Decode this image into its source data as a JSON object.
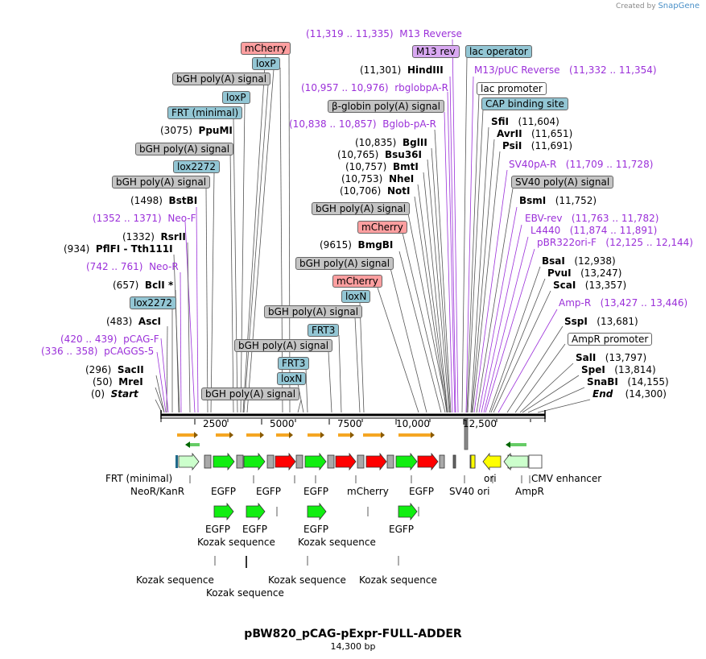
{
  "credit": {
    "prefix": "Created by",
    "brand": "SnapGene"
  },
  "title": "pBW820_pCAG-pExpr-FULL-ADDER",
  "subtitle": "14,300 bp",
  "ruler_ticks": [
    "2500",
    "5000",
    "7500",
    "10,000",
    "12,500"
  ],
  "left_sites": [
    {
      "pos": "(11,301)",
      "name": "HindIII"
    },
    {
      "pos": "(3075)",
      "name": "PpuMI"
    },
    {
      "pos": "(10,835)",
      "name": "BglII"
    },
    {
      "pos": "(10,765)",
      "name": "Bsu36I"
    },
    {
      "pos": "(10,757)",
      "name": "BmtI"
    },
    {
      "pos": "(10,753)",
      "name": "NheI"
    },
    {
      "pos": "(10,706)",
      "name": "NotI"
    },
    {
      "pos": "(1498)",
      "name": "BstBI"
    },
    {
      "pos": "(1332)",
      "name": "RsrII"
    },
    {
      "pos": "(934)",
      "name": "PflFI - Tth111I"
    },
    {
      "pos": "(9615)",
      "name": "BmgBI"
    },
    {
      "pos": "(657)",
      "name": "BclI *"
    },
    {
      "pos": "(483)",
      "name": "AscI"
    },
    {
      "pos": "(296)",
      "name": "SacII"
    },
    {
      "pos": "(50)",
      "name": "MreI"
    },
    {
      "pos": "(0)",
      "name": "Start"
    }
  ],
  "right_sites": [
    {
      "name": "SfiI",
      "pos": "(11,604)"
    },
    {
      "name": "AvrII",
      "pos": "(11,651)"
    },
    {
      "name": "PsiI",
      "pos": "(11,691)"
    },
    {
      "name": "BsmI",
      "pos": "(11,752)"
    },
    {
      "name": "BsaI",
      "pos": "(12,938)"
    },
    {
      "name": "PvuI",
      "pos": "(13,247)"
    },
    {
      "name": "ScaI",
      "pos": "(13,357)"
    },
    {
      "name": "SspI",
      "pos": "(13,681)"
    },
    {
      "name": "SalI",
      "pos": "(13,797)"
    },
    {
      "name": "SpeI",
      "pos": "(13,814)"
    },
    {
      "name": "SnaBI",
      "pos": "(14,155)"
    },
    {
      "name": "End",
      "pos": "(14,300)"
    }
  ],
  "primers": [
    {
      "range": "(11,319 .. 11,335)",
      "name": "M13 Reverse"
    },
    {
      "range": "(10,957 .. 10,976)",
      "name": "rbglobpA-R"
    },
    {
      "range": "(10,838 .. 10,857)",
      "name": "Bglob-pA-R"
    },
    {
      "range": "(1352 .. 1371)",
      "name": "Neo-F"
    },
    {
      "range": "(742 .. 761)",
      "name": "Neo-R"
    },
    {
      "range": "(420 .. 439)",
      "name": "pCAG-F"
    },
    {
      "range": "(336 .. 358)",
      "name": "pCAGGS-5"
    },
    {
      "range": "(11,332 .. 11,354)",
      "name": "M13/pUC Reverse"
    },
    {
      "range": "(11,709 .. 11,728)",
      "name": "SV40pA-R"
    },
    {
      "range": "(11,763 .. 11,782)",
      "name": "EBV-rev"
    },
    {
      "range": "(11,874 .. 11,891)",
      "name": "L4440"
    },
    {
      "range": "(12,125 .. 12,144)",
      "name": "pBR322ori-F"
    },
    {
      "range": "(13,427 .. 13,446)",
      "name": "Amp-R"
    }
  ],
  "boxed_features": [
    "mCherry",
    "loxP",
    "bGH poly(A) signal",
    "loxP",
    "FRT (minimal)",
    "bGH poly(A) signal",
    "lox2272",
    "bGH poly(A) signal",
    "lox2272",
    "M13 rev",
    "β-globin poly(A) signal",
    "bGH poly(A) signal",
    "mCherry",
    "bGH poly(A) signal",
    "mCherry",
    "loxN",
    "bGH poly(A) signal",
    "FRT3",
    "bGH poly(A) signal",
    "FRT3",
    "loxN",
    "bGH poly(A) signal",
    "lac operator",
    "lac promoter",
    "CAP binding site",
    "SV40 poly(A) signal",
    "AmpR promoter"
  ],
  "feature_labels": [
    "FRT (minimal)",
    "NeoR/KanR",
    "EGFP",
    "EGFP",
    "EGFP",
    "mCherry",
    "EGFP",
    "SV40 ori",
    "ori",
    "AmpR",
    "CMV enhancer",
    "EGFP",
    "EGFP",
    "EGFP",
    "EGFP",
    "Kozak sequence",
    "Kozak sequence",
    "Kozak sequence",
    "Kozak sequence",
    "Kozak sequence",
    "Kozak sequence"
  ],
  "colors": {
    "primer": "#9b30d9",
    "egfp": "#11ee11",
    "mcherry": "#ff0000",
    "gray_box": "#a9a9a9",
    "neo": "#ccffcc",
    "ori": "#ffff00",
    "orange_arrow": "#f5a623"
  }
}
